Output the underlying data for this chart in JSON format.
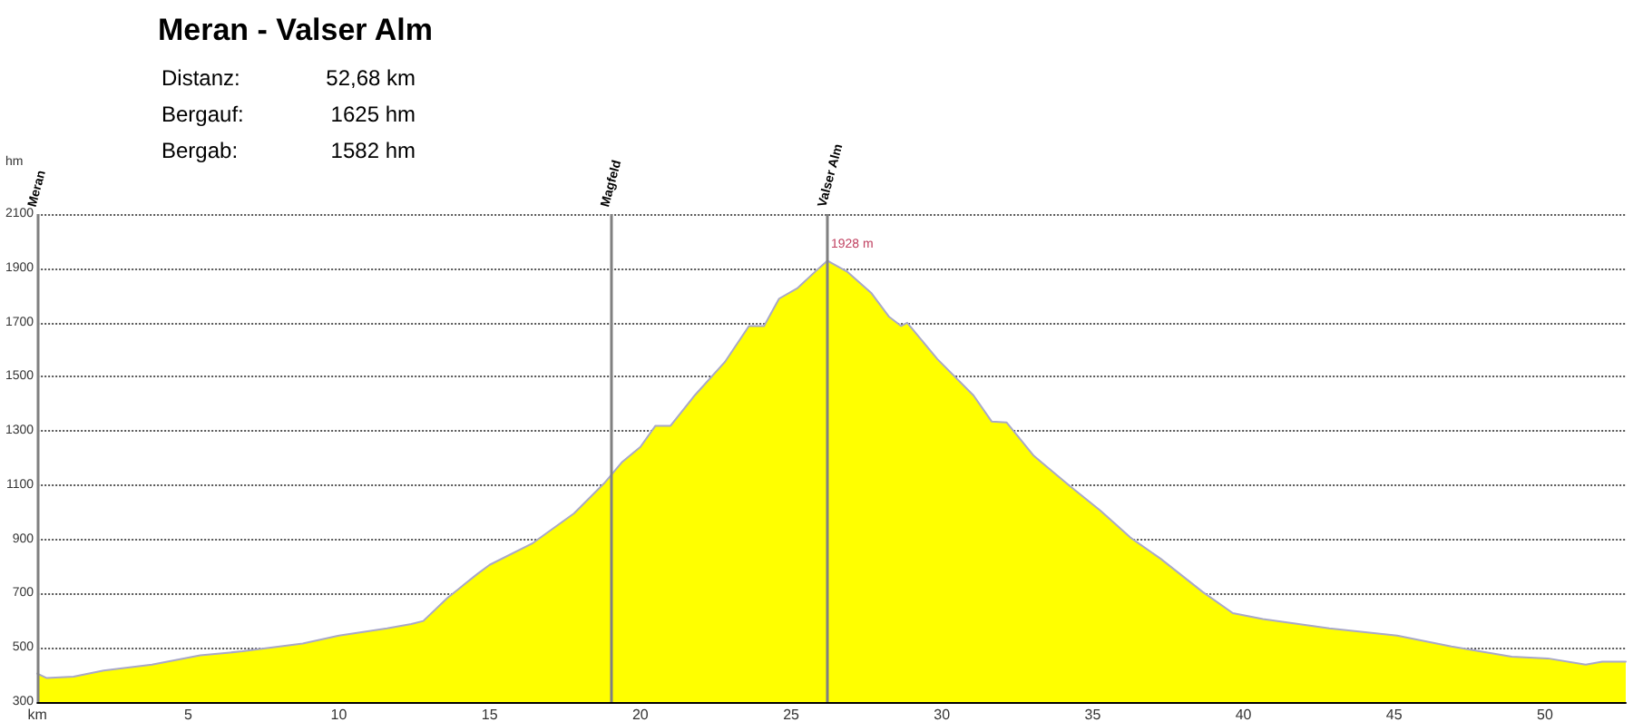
{
  "chart_data": {
    "type": "area",
    "title": "Meran - Valser Alm",
    "annotations": [
      "Distanz: 52,68 km",
      "Bergauf: 1625 hm",
      "Bergab: 1582 hm",
      {
        "text": "1928 m",
        "x": 26.2,
        "y": 1928
      }
    ],
    "ylabel": "hm",
    "x": [
      0,
      0.3,
      1.2,
      2.2,
      3.8,
      5.4,
      6.8,
      8.8,
      10,
      11.6,
      12.4,
      12.8,
      13.6,
      14.6,
      15,
      16.4,
      17.8,
      18.8,
      19.4,
      20,
      20.5,
      21,
      21.8,
      22.8,
      23.6,
      24.1,
      24.6,
      25.2,
      25.8,
      26.2,
      26.85,
      27.65,
      28.25,
      28.65,
      28.85,
      29.85,
      31.05,
      31.65,
      32.15,
      33.05,
      34.25,
      35.25,
      36.25,
      37.25,
      38.65,
      39.65,
      40.65,
      42.85,
      45.1,
      46.9,
      48.9,
      50.1,
      51.35,
      51.9,
      52.68
    ],
    "series": [
      {
        "color": "#ffff00",
        "values": [
          405,
          389,
          394,
          416,
          438,
          472,
          487,
          516,
          545,
          572,
          588,
          599,
          684,
          773,
          806,
          884,
          996,
          1107,
          1186,
          1241,
          1319,
          1319,
          1431,
          1554,
          1687,
          1687,
          1788,
          1826,
          1888,
          1928,
          1888,
          1810,
          1721,
          1687,
          1699,
          1565,
          1431,
          1335,
          1331,
          1208,
          1096,
          1007,
          907,
          829,
          706,
          628,
          606,
          572,
          545,
          505,
          467,
          461,
          438,
          449,
          449
        ]
      }
    ],
    "xlim": [
      0,
      52.68
    ],
    "ylim": [
      300,
      2100
    ],
    "xticks": [
      {
        "value": 0,
        "label": "km"
      },
      5,
      10,
      15,
      20,
      25,
      30,
      35,
      40,
      45,
      50
    ],
    "yticks": [
      300,
      500,
      700,
      900,
      1100,
      1300,
      1500,
      1700,
      1900,
      2100
    ],
    "ref_lines": [
      {
        "axis": "x",
        "value": 0,
        "label": "Meran",
        "color": "#808080"
      },
      {
        "axis": "x",
        "value": 19,
        "label": "Magfeld",
        "color": "#808080"
      },
      {
        "axis": "x",
        "value": 26.2,
        "label": "Valser Alm",
        "color": "#808080"
      }
    ],
    "grid": "y",
    "marker": "none",
    "line_style": "solid"
  }
}
